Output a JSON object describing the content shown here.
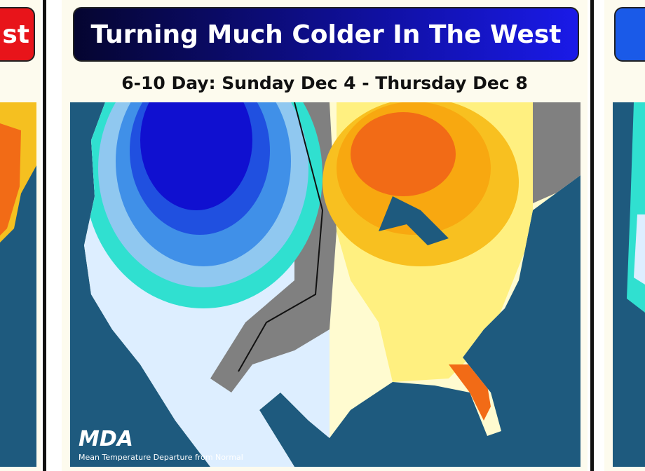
{
  "left_card": {
    "title_fragment": "st"
  },
  "main_card": {
    "title": "Turning Much Colder In The West",
    "subtitle": "6-10 Day: Sunday Dec 4 - Thursday Dec 8",
    "map": {
      "logo": "MDA",
      "caption": "Mean Temperature Departure from Normal"
    }
  }
}
